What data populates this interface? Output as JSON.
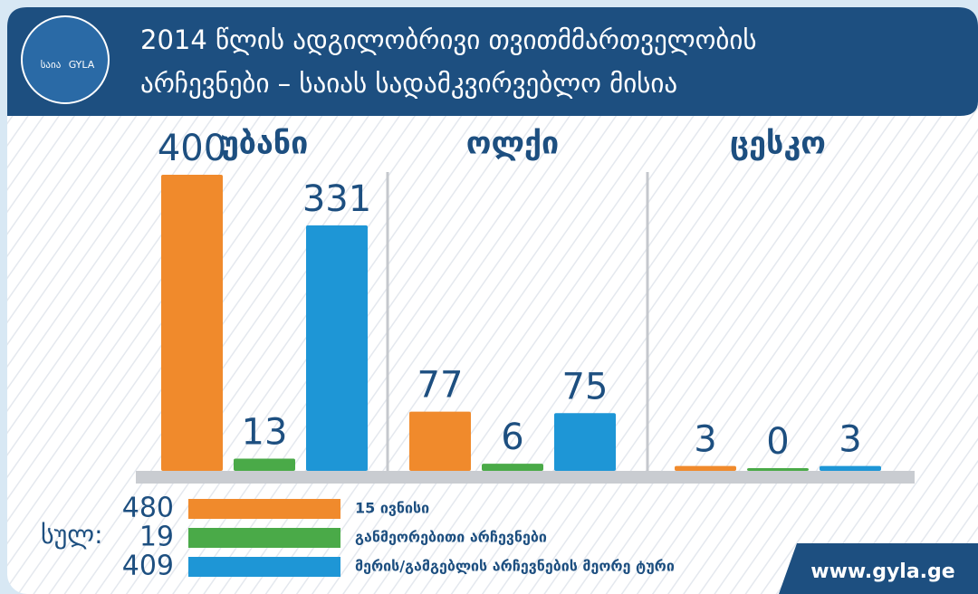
{
  "header": {
    "logo_text": "საია",
    "logo_text_en": "GYLA"
  },
  "chart_data": {
    "type": "bar",
    "title": [
      "2014 წლის ადგილობრივი თვითმმართველობის",
      "არჩევნები – საიას სადამკვირვებლო მისია"
    ],
    "categories": [
      "უბანი",
      "ოლქი",
      "ცესკო"
    ],
    "series": [
      {
        "name": "15 ივნისი",
        "color": "#f08a2c",
        "values": [
          400,
          77,
          3
        ],
        "total": 480
      },
      {
        "name": "განმეორებითი არჩევნები",
        "color": "#4aaa48",
        "values": [
          13,
          6,
          0
        ],
        "total": 19
      },
      {
        "name": "მერის/გამგებლის არჩევნების მეორე ტური",
        "color": "#1e96d6",
        "values": [
          331,
          75,
          3
        ],
        "total": 409
      }
    ],
    "total_label": "სულ:"
  },
  "footer": {
    "url": "www.gyla.ge"
  }
}
